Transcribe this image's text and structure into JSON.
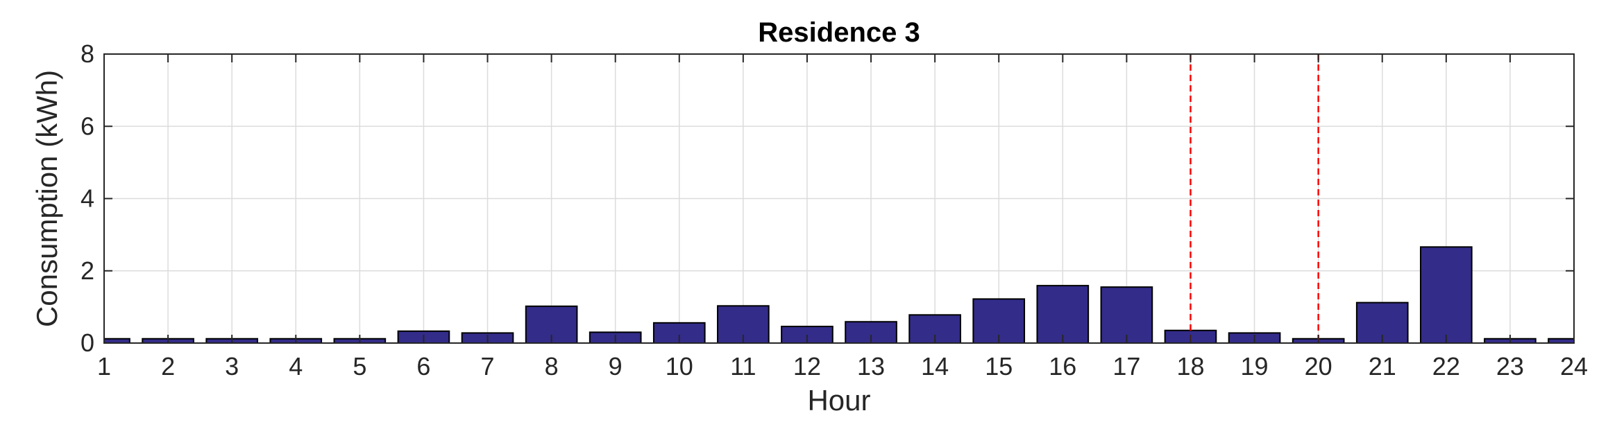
{
  "chart_data": {
    "type": "bar",
    "title": "Residence 3",
    "xlabel": "Hour",
    "ylabel": "Consumption (kWh)",
    "categories": [
      "1",
      "2",
      "3",
      "4",
      "5",
      "6",
      "7",
      "8",
      "9",
      "10",
      "11",
      "12",
      "13",
      "14",
      "15",
      "16",
      "17",
      "18",
      "19",
      "20",
      "21",
      "22",
      "23",
      "24"
    ],
    "values": [
      0.12,
      0.12,
      0.12,
      0.12,
      0.12,
      0.33,
      0.28,
      1.02,
      0.3,
      0.56,
      1.03,
      0.46,
      0.59,
      0.78,
      1.22,
      1.59,
      1.55,
      0.35,
      0.28,
      0.12,
      1.12,
      2.66,
      0.12,
      0.12
    ],
    "xlim": [
      1,
      24
    ],
    "ylim": [
      0,
      8
    ],
    "yticks": [
      0,
      2,
      4,
      6,
      8
    ],
    "grid": true,
    "reference_lines": [
      18,
      20
    ],
    "colors": {
      "bar": "#332c89",
      "reference_line": "#ff0000"
    }
  }
}
